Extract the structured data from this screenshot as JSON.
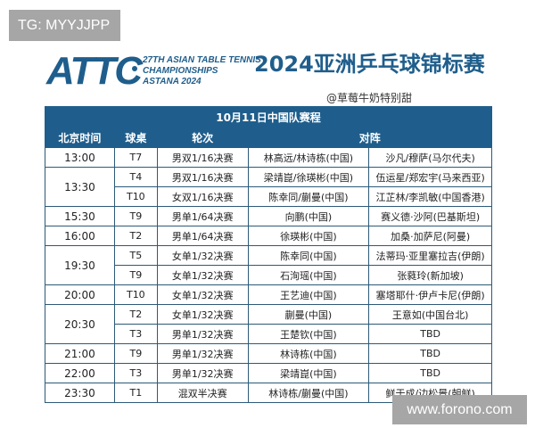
{
  "watermarks": {
    "top_left": "TG: MYYJJPP",
    "bottom_right": "www.forono.com"
  },
  "header": {
    "logo_text": "ATTC",
    "subtitle_lines": [
      "27TH ASIAN TABLE TENNIS",
      "CHAMPIONSHIPS",
      "ASTANA 2024"
    ],
    "title": "2024亚洲乒乓球锦标赛",
    "credit": "@草莓牛奶特别甜"
  },
  "table": {
    "caption": "10月11日中国队赛程",
    "columns": [
      "北京时间",
      "球桌",
      "轮次",
      "对阵"
    ],
    "accent_color": "#1f5e8c",
    "groups": [
      {
        "time": "13:00",
        "rows": [
          {
            "table": "T7",
            "round": "男双1/16决赛",
            "china": "林高远/林诗栋(中国)",
            "opponent": "沙凡/穆萨(马尔代夫)"
          }
        ]
      },
      {
        "time": "13:30",
        "rows": [
          {
            "table": "T4",
            "round": "男双1/16决赛",
            "china": "梁靖崑/徐瑛彬(中国)",
            "opponent": "伍运星/郑宏宇(马来西亚)"
          },
          {
            "table": "T10",
            "round": "女双1/16决赛",
            "china": "陈幸同/蒯曼(中国)",
            "opponent": "江芷林/李凯敏(中国香港)"
          }
        ]
      },
      {
        "time": "15:30",
        "rows": [
          {
            "table": "T9",
            "round": "男单1/64决赛",
            "china": "向鹏(中国)",
            "opponent": "赛义德·沙阿(巴基斯坦)"
          }
        ]
      },
      {
        "time": "16:00",
        "rows": [
          {
            "table": "T2",
            "round": "男单1/64决赛",
            "china": "徐瑛彬(中国)",
            "opponent": "加桑·加萨尼(阿曼)"
          }
        ]
      },
      {
        "time": "19:30",
        "rows": [
          {
            "table": "T5",
            "round": "女单1/32决赛",
            "china": "陈幸同(中国)",
            "opponent": "法蒂玛·亚里塞拉吉(伊朗)"
          },
          {
            "table": "T9",
            "round": "女单1/32决赛",
            "china": "石洵瑶(中国)",
            "opponent": "张蕤玲(新加坡)"
          }
        ]
      },
      {
        "time": "20:00",
        "rows": [
          {
            "table": "T10",
            "round": "女单1/32决赛",
            "china": "王艺迪(中国)",
            "opponent": "塞塔耶什·伊卢卡尼(伊朗)"
          }
        ]
      },
      {
        "time": "20:30",
        "rows": [
          {
            "table": "T2",
            "round": "女单1/32决赛",
            "china": "蒯曼(中国)",
            "opponent": "王意如(中国台北)"
          },
          {
            "table": "T3",
            "round": "男单1/32决赛",
            "china": "王楚钦(中国)",
            "opponent": "TBD"
          }
        ]
      },
      {
        "time": "21:00",
        "rows": [
          {
            "table": "T9",
            "round": "男单1/32决赛",
            "china": "林诗栋(中国)",
            "opponent": "TBD"
          }
        ]
      },
      {
        "time": "22:00",
        "rows": [
          {
            "table": "T3",
            "round": "男单1/32决赛",
            "china": "梁靖崑(中国)",
            "opponent": "TBD"
          }
        ]
      },
      {
        "time": "23:30",
        "rows": [
          {
            "table": "T1",
            "round": "混双半决赛",
            "china": "林诗栋/蒯曼(中国)",
            "opponent": "鲜于成/边松景(朝鲜)"
          }
        ]
      }
    ]
  }
}
